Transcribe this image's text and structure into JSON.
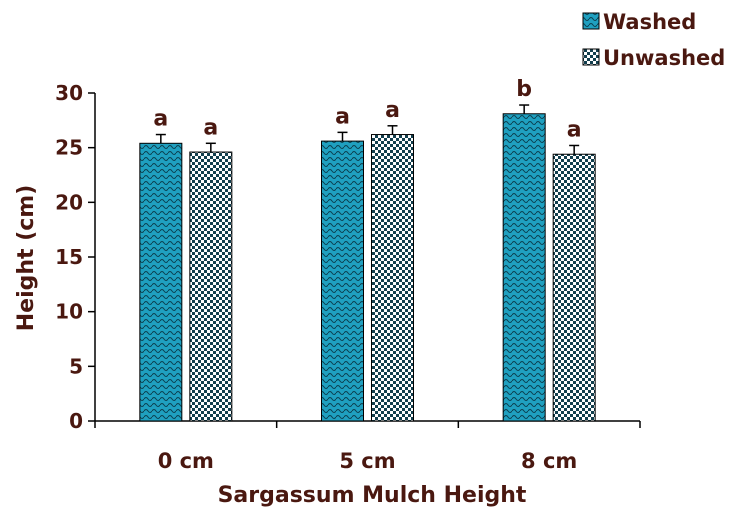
{
  "chart_data": {
    "type": "bar",
    "title": "",
    "xlabel": "Sargassum Mulch Height",
    "ylabel": "Height (cm)",
    "categories": [
      "0 cm",
      "5 cm",
      "8 cm"
    ],
    "ylim": [
      0,
      30
    ],
    "yticks": [
      "0",
      "5",
      "10",
      "15",
      "20",
      "25",
      "30"
    ],
    "series": [
      {
        "name": "Washed",
        "values": [
          25.4,
          25.6,
          28.1
        ],
        "errors": [
          0.8,
          0.8,
          0.8
        ],
        "letters": [
          "a",
          "a",
          "b"
        ],
        "color": "#1fa0c0",
        "pattern": "wave"
      },
      {
        "name": "Unwashed",
        "values": [
          24.6,
          26.2,
          24.4
        ],
        "errors": [
          0.8,
          0.8,
          0.8
        ],
        "letters": [
          "a",
          "a",
          "a"
        ],
        "color": "#1e6e86",
        "pattern": "checker"
      }
    ],
    "grid": false,
    "legend_position": "top-right",
    "colors": {
      "text": "#4a1810",
      "axis": "#000000"
    }
  }
}
